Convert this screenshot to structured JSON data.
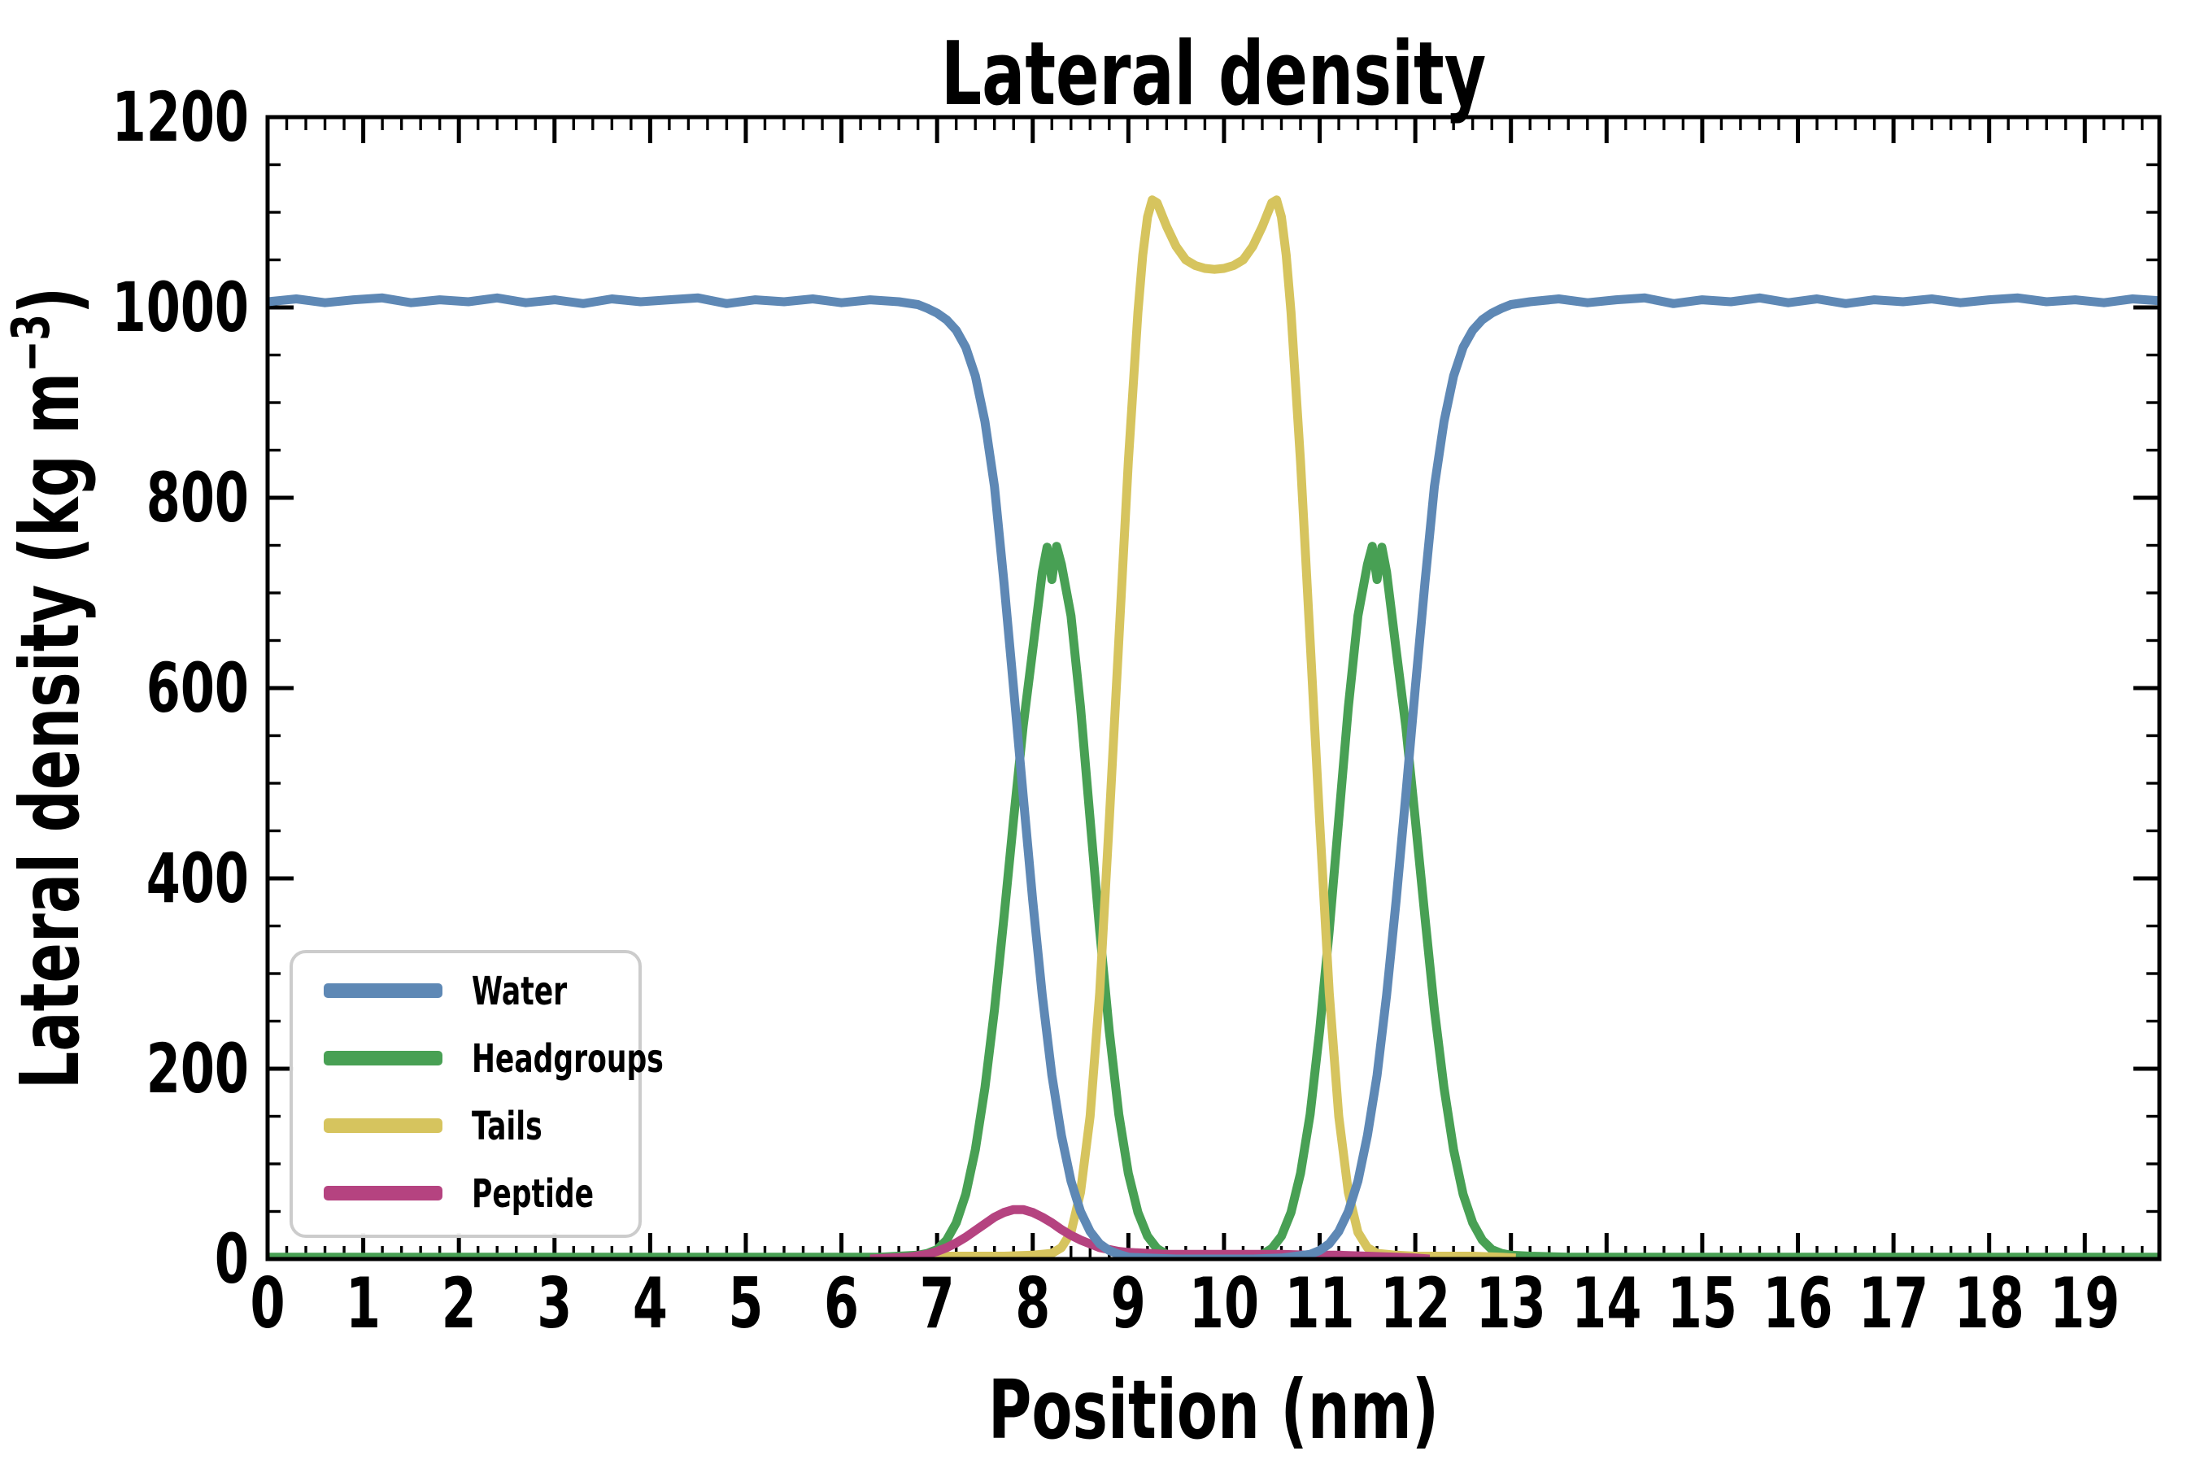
{
  "title": "Lateral density",
  "legend": {
    "items": [
      {
        "label": "Water",
        "color": "#5E88B5"
      },
      {
        "label": "Headgroups",
        "color": "#48A054"
      },
      {
        "label": "Tails",
        "color": "#D6C45E"
      },
      {
        "label": "Peptide",
        "color": "#B54380"
      }
    ]
  },
  "chart_data": {
    "type": "line",
    "title": "Lateral density",
    "xlabel": "Position (nm)",
    "ylabel": "Lateral density (kg m⁻³)",
    "ylabel_parts": {
      "pre": "Lateral density (kg m",
      "sup": "−3",
      "post": ")"
    },
    "xlim": [
      0,
      19.78
    ],
    "ylim": [
      0,
      1200
    ],
    "x_major_tick": 1,
    "x_minor_tick": 0.2,
    "y_major_tick": 200,
    "y_minor_tick": 50,
    "x_tick_labels": [
      "0",
      "1",
      "2",
      "3",
      "4",
      "5",
      "6",
      "7",
      "8",
      "9",
      "10",
      "11",
      "12",
      "13",
      "14",
      "15",
      "16",
      "17",
      "18",
      "19"
    ],
    "y_tick_labels": [
      "0",
      "200",
      "400",
      "600",
      "800",
      "1000",
      "1200"
    ],
    "grid": false,
    "legend_position": "lower left",
    "draw_order": [
      "Headgroups",
      "Tails",
      "Peptide",
      "Water"
    ],
    "series": [
      {
        "name": "Water",
        "color": "#5E88B5",
        "x": [
          0,
          0.3,
          0.6,
          0.9,
          1.2,
          1.5,
          1.8,
          2.1,
          2.4,
          2.7,
          3.0,
          3.3,
          3.6,
          3.9,
          4.2,
          4.5,
          4.8,
          5.1,
          5.4,
          5.7,
          6.0,
          6.3,
          6.6,
          6.8,
          6.9,
          7.0,
          7.1,
          7.2,
          7.3,
          7.4,
          7.5,
          7.6,
          7.7,
          7.8,
          7.9,
          8.0,
          8.1,
          8.2,
          8.3,
          8.4,
          8.5,
          8.6,
          8.7,
          8.8,
          8.9,
          9.0,
          9.2,
          9.5,
          10.0,
          10.3,
          10.6,
          10.9,
          11.0,
          11.1,
          11.2,
          11.3,
          11.4,
          11.5,
          11.6,
          11.7,
          11.8,
          11.9,
          12.0,
          12.1,
          12.2,
          12.3,
          12.4,
          12.5,
          12.6,
          12.7,
          12.8,
          12.9,
          13.0,
          13.2,
          13.5,
          13.8,
          14.1,
          14.4,
          14.7,
          15.0,
          15.3,
          15.6,
          15.9,
          16.2,
          16.5,
          16.8,
          17.1,
          17.4,
          17.7,
          18.0,
          18.3,
          18.6,
          18.9,
          19.2,
          19.5,
          19.78
        ],
        "y": [
          1006,
          1009,
          1005,
          1008,
          1010,
          1005,
          1008,
          1006,
          1010,
          1005,
          1008,
          1004,
          1009,
          1006,
          1008,
          1010,
          1004,
          1008,
          1006,
          1009,
          1005,
          1008,
          1006,
          1003,
          999,
          994,
          987,
          976,
          958,
          928,
          880,
          812,
          710,
          600,
          487,
          377,
          277,
          193,
          130,
          82,
          50,
          29,
          16,
          9,
          5,
          2,
          1,
          0,
          0,
          0,
          1,
          5,
          9,
          16,
          29,
          50,
          82,
          130,
          193,
          277,
          377,
          487,
          600,
          710,
          812,
          880,
          928,
          958,
          976,
          987,
          994,
          999,
          1003,
          1006,
          1009,
          1005,
          1008,
          1010,
          1004,
          1008,
          1006,
          1010,
          1005,
          1009,
          1004,
          1008,
          1006,
          1009,
          1005,
          1008,
          1010,
          1006,
          1008,
          1005,
          1009,
          1007
        ]
      },
      {
        "name": "Headgroups",
        "color": "#48A054",
        "x": [
          0,
          0.6,
          1.2,
          1.8,
          2.4,
          3.0,
          3.6,
          4.2,
          4.8,
          5.4,
          6.0,
          6.4,
          6.6,
          6.8,
          6.9,
          7.0,
          7.1,
          7.2,
          7.3,
          7.4,
          7.5,
          7.6,
          7.7,
          7.8,
          7.9,
          8.0,
          8.1,
          8.15,
          8.2,
          8.25,
          8.3,
          8.4,
          8.5,
          8.6,
          8.7,
          8.8,
          8.9,
          9.0,
          9.1,
          9.2,
          9.3,
          9.4,
          9.5,
          9.7,
          10.0,
          10.1,
          10.3,
          10.4,
          10.5,
          10.6,
          10.7,
          10.8,
          10.9,
          11.0,
          11.1,
          11.2,
          11.3,
          11.4,
          11.5,
          11.55,
          11.6,
          11.65,
          11.7,
          11.8,
          11.9,
          12.0,
          12.1,
          12.2,
          12.3,
          12.4,
          12.5,
          12.6,
          12.7,
          12.8,
          12.9,
          13.0,
          13.2,
          13.6,
          14.0,
          14.6,
          15.2,
          15.8,
          16.4,
          17.0,
          17.6,
          18.2,
          18.8,
          19.4,
          19.78
        ],
        "y": [
          2,
          2,
          2,
          2,
          2,
          2,
          2,
          2,
          2,
          2,
          2,
          2,
          3,
          4,
          6,
          10,
          20,
          38,
          68,
          115,
          180,
          262,
          360,
          462,
          560,
          640,
          722,
          748,
          714,
          749,
          730,
          676,
          580,
          462,
          345,
          240,
          152,
          90,
          49,
          24,
          11,
          5,
          3,
          1,
          1,
          1,
          3,
          5,
          11,
          24,
          49,
          90,
          152,
          240,
          345,
          462,
          580,
          676,
          730,
          749,
          714,
          748,
          722,
          640,
          560,
          462,
          360,
          262,
          180,
          115,
          68,
          38,
          20,
          10,
          6,
          4,
          3,
          2,
          2,
          2,
          2,
          2,
          2,
          2,
          2,
          2,
          2,
          2,
          2
        ]
      },
      {
        "name": "Tails",
        "color": "#D6C45E",
        "x": [
          6.8,
          7.1,
          7.4,
          7.7,
          8.0,
          8.2,
          8.3,
          8.4,
          8.5,
          8.6,
          8.7,
          8.8,
          8.9,
          9.0,
          9.1,
          9.15,
          9.2,
          9.25,
          9.3,
          9.4,
          9.5,
          9.6,
          9.7,
          9.8,
          9.9,
          10.0,
          10.1,
          10.2,
          10.3,
          10.4,
          10.5,
          10.55,
          10.6,
          10.65,
          10.7,
          10.8,
          10.9,
          11.0,
          11.1,
          11.2,
          11.3,
          11.4,
          11.5,
          11.6,
          11.8,
          12.0,
          12.3,
          12.6,
          12.9,
          13.05
        ],
        "y": [
          2,
          3,
          3,
          3,
          4,
          6,
          12,
          28,
          70,
          150,
          280,
          460,
          650,
          838,
          995,
          1055,
          1095,
          1113,
          1110,
          1085,
          1064,
          1050,
          1044,
          1041,
          1040,
          1041,
          1044,
          1050,
          1064,
          1085,
          1110,
          1113,
          1095,
          1055,
          995,
          838,
          650,
          460,
          280,
          150,
          70,
          28,
          12,
          6,
          4,
          3,
          3,
          3,
          2,
          1
        ]
      },
      {
        "name": "Peptide",
        "color": "#B54380",
        "x": [
          6.3,
          6.5,
          6.7,
          6.9,
          7.0,
          7.1,
          7.2,
          7.3,
          7.4,
          7.5,
          7.6,
          7.7,
          7.8,
          7.9,
          8.0,
          8.1,
          8.2,
          8.3,
          8.4,
          8.5,
          8.6,
          8.7,
          8.8,
          8.9,
          9.0,
          9.2,
          9.4,
          9.7,
          10.0,
          10.3,
          10.6,
          10.9,
          11.2,
          11.5,
          11.8,
          12.0,
          12.15
        ],
        "y": [
          0,
          1,
          2,
          5,
          8,
          12,
          17,
          23,
          30,
          37,
          44,
          49,
          52,
          52,
          49,
          44,
          38,
          31,
          25,
          20,
          16,
          12,
          10,
          8,
          7,
          6,
          5,
          5,
          5,
          5,
          5,
          4,
          4,
          3,
          2,
          1,
          0
        ]
      }
    ]
  }
}
